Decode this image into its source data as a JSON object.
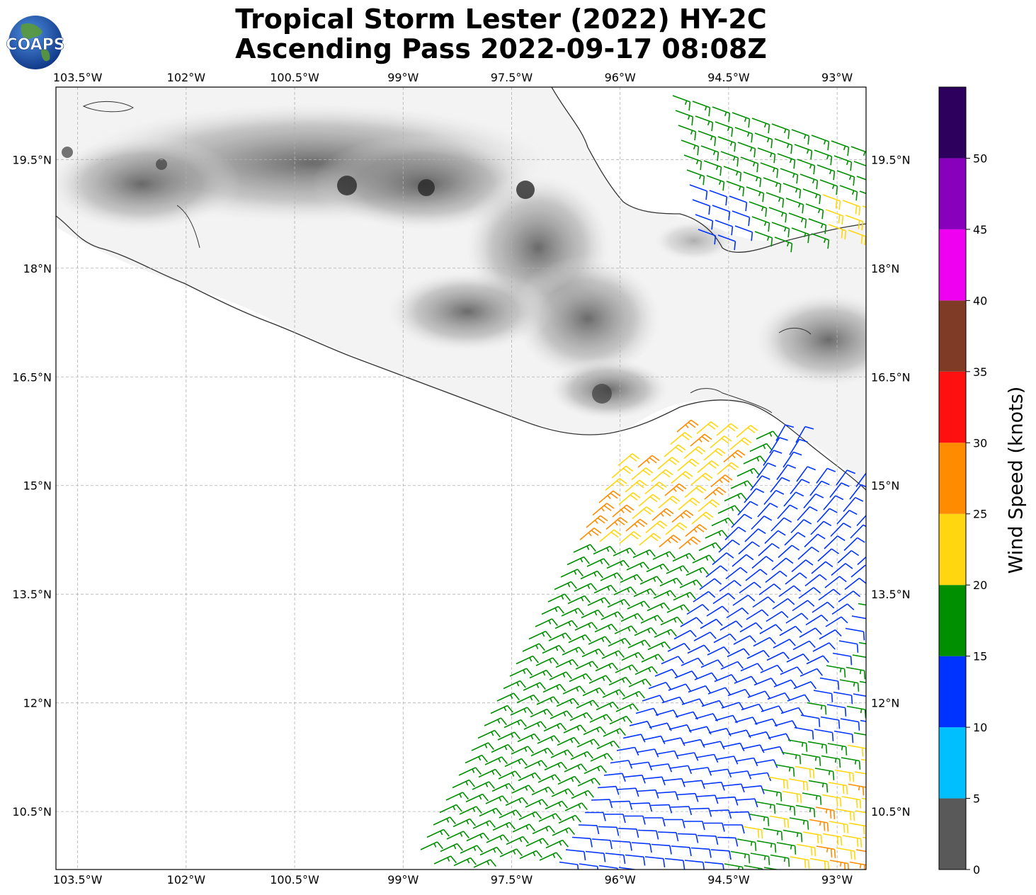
{
  "title": {
    "line1": "Tropical Storm Lester (2022) HY-2C",
    "line2": "Ascending Pass 2022-09-17 08:08Z"
  },
  "logo": {
    "text": "COAPS",
    "icon": "globe-icon"
  },
  "map": {
    "lon_ticks": [
      "103.5°W",
      "102°W",
      "100.5°W",
      "99°W",
      "97.5°W",
      "96°W",
      "94.5°W",
      "93°W"
    ],
    "lat_ticks": [
      "19.5°N",
      "18°N",
      "16.5°N",
      "15°N",
      "13.5°N",
      "12°N",
      "10.5°N"
    ],
    "lon_range": [
      -103.8,
      -92.6
    ],
    "lat_range": [
      9.7,
      20.5
    ],
    "gridlines": true,
    "layers": [
      "terrain-shading",
      "coastline",
      "wind-barbs"
    ]
  },
  "colorbar": {
    "label": "Wind Speed (knots)",
    "ticks": [
      "0",
      "5",
      "10",
      "15",
      "20",
      "25",
      "30",
      "35",
      "40",
      "45",
      "50"
    ],
    "bins": [
      {
        "min": 0,
        "max": 5,
        "color": "#595959"
      },
      {
        "min": 5,
        "max": 10,
        "color": "#00bfff"
      },
      {
        "min": 10,
        "max": 15,
        "color": "#0033ff"
      },
      {
        "min": 15,
        "max": 20,
        "color": "#008f00"
      },
      {
        "min": 20,
        "max": 25,
        "color": "#ffd60f"
      },
      {
        "min": 25,
        "max": 30,
        "color": "#ff8c00"
      },
      {
        "min": 30,
        "max": 35,
        "color": "#ff1010"
      },
      {
        "min": 35,
        "max": 40,
        "color": "#7f3b26"
      },
      {
        "min": 40,
        "max": 45,
        "color": "#f000f0"
      },
      {
        "min": 45,
        "max": 50,
        "color": "#8800bb"
      },
      {
        "min": 50,
        "max": 55,
        "color": "#2e005e"
      }
    ]
  }
}
